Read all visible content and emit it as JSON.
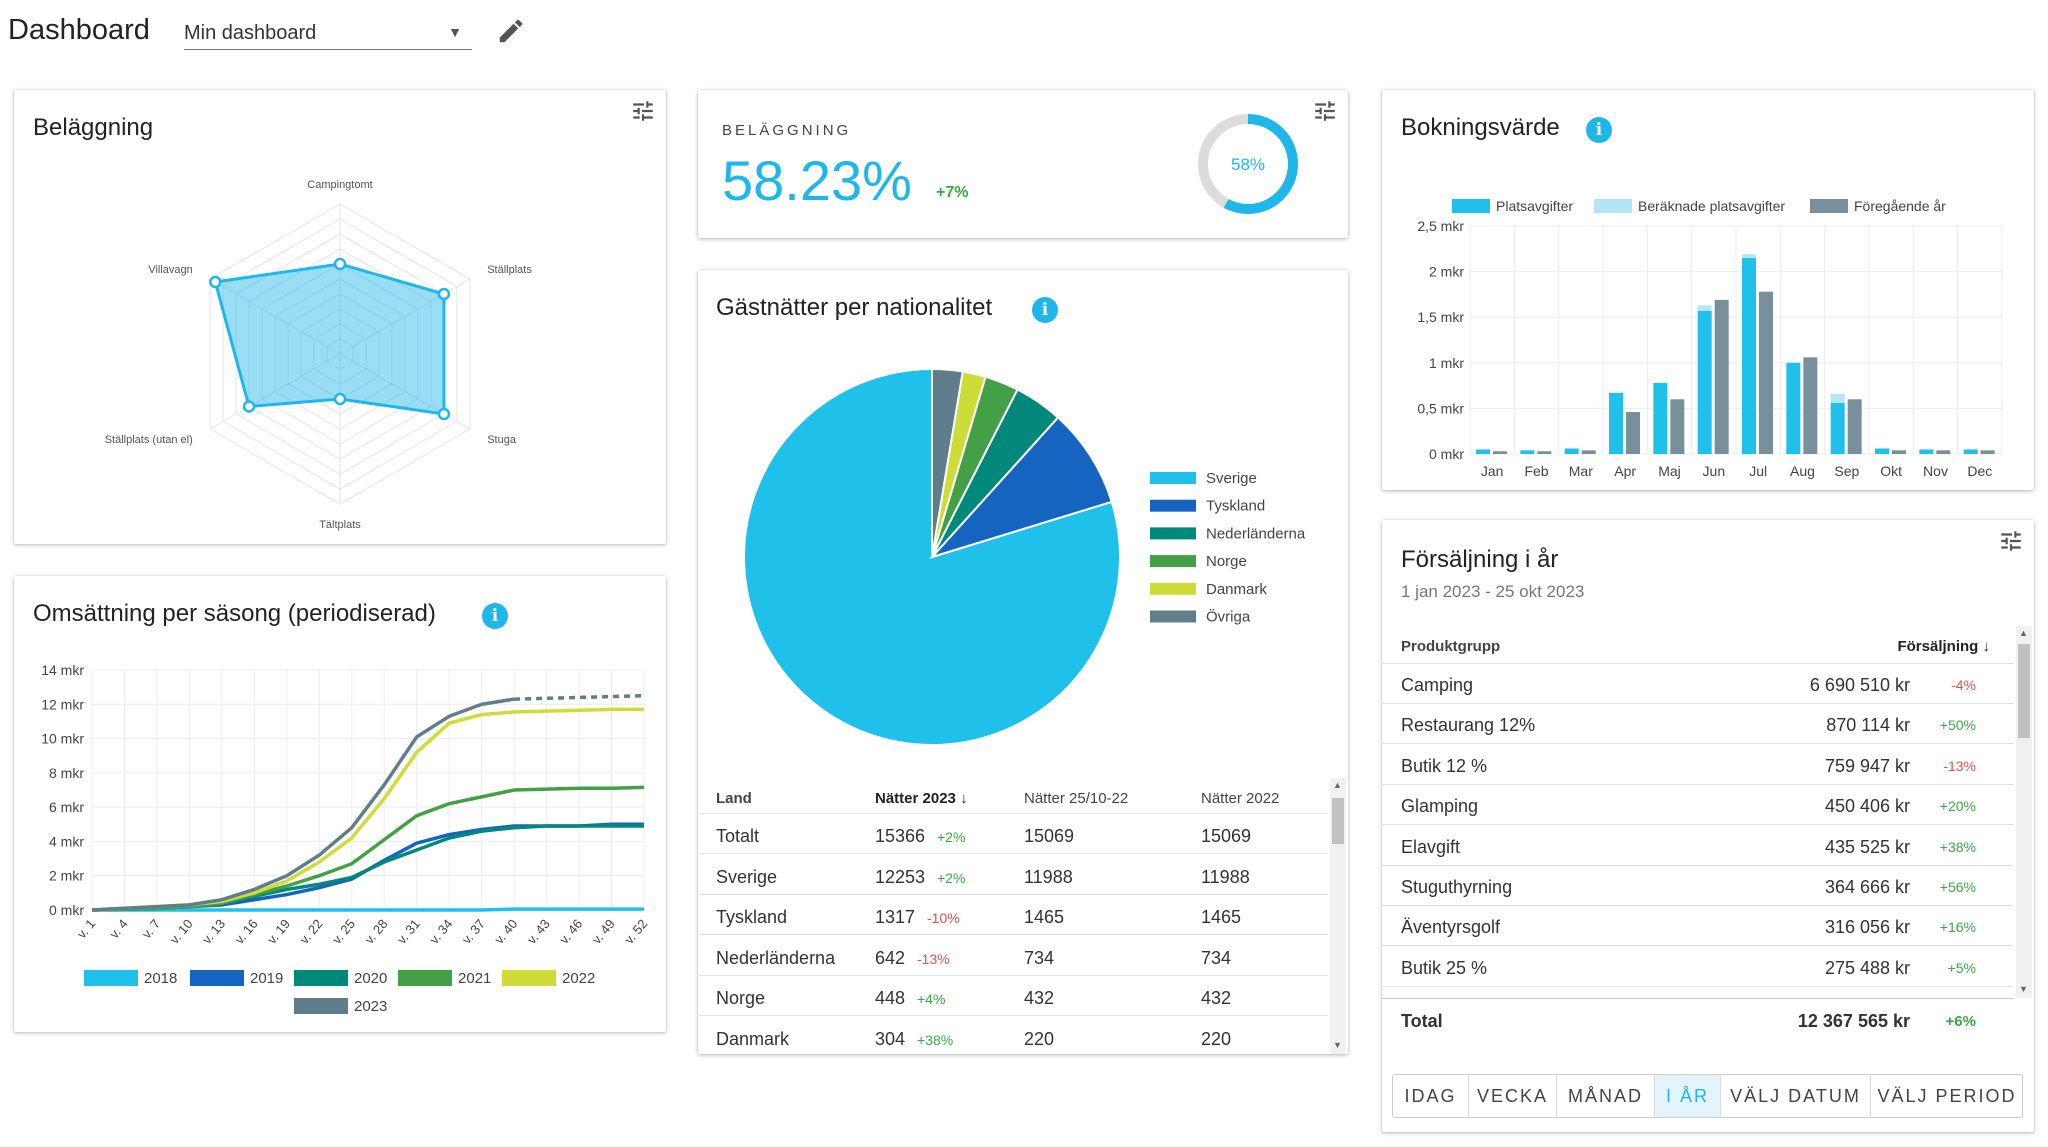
{
  "header": {
    "title": "Dashboard",
    "dashboard_select": "Min dashboard"
  },
  "colors": {
    "accent": "#1fb6ea",
    "positive": "#3aa844",
    "negative": "#e05050"
  },
  "radar": {
    "title": "Beläggning",
    "chart_data": {
      "type": "radar",
      "axes": [
        "Campingtomt",
        "Ställplats",
        "Stuga",
        "Tältplats",
        "Ställplats (utan el)",
        "Villavagn"
      ],
      "values": [
        0.6,
        0.8,
        0.8,
        0.3,
        0.7,
        0.96
      ],
      "max": 1
    }
  },
  "occupancy": {
    "label": "BELÄGGNING",
    "value": "58.23%",
    "change": "+7%",
    "donut_label": "58%",
    "donut_fraction": 0.58
  },
  "nationality": {
    "title": "Gästnätter per nationalitet",
    "chart_data": {
      "type": "pie",
      "labels": [
        "Sverige",
        "Tyskland",
        "Nederländerna",
        "Norge",
        "Danmark",
        "Övriga"
      ],
      "values": [
        12253,
        1317,
        642,
        448,
        304,
        402
      ],
      "colors": [
        "#1fc0ea",
        "#1565c0",
        "#00897b",
        "#43a047",
        "#cddc39",
        "#607d8b"
      ]
    },
    "table": {
      "headers": [
        "Land",
        "Nätter 2023",
        "Nätter 25/10-22",
        "Nätter 2022"
      ],
      "rows": [
        {
          "land": "Totalt",
          "n2023": "15366",
          "chg": "+2%",
          "n251022": "15069",
          "n2022": "15069"
        },
        {
          "land": "Sverige",
          "n2023": "12253",
          "chg": "+2%",
          "n251022": "11988",
          "n2022": "11988"
        },
        {
          "land": "Tyskland",
          "n2023": "1317",
          "chg": "-10%",
          "n251022": "1465",
          "n2022": "1465"
        },
        {
          "land": "Nederländerna",
          "n2023": "642",
          "chg": "-13%",
          "n251022": "734",
          "n2022": "734"
        },
        {
          "land": "Norge",
          "n2023": "448",
          "chg": "+4%",
          "n251022": "432",
          "n2022": "432"
        },
        {
          "land": "Danmark",
          "n2023": "304",
          "chg": "+38%",
          "n251022": "220",
          "n2022": "220"
        }
      ]
    }
  },
  "season": {
    "title": "Omsättning per säsong (periodiserad)",
    "chart_data": {
      "type": "line",
      "x": [
        "v. 1",
        "v. 4",
        "v. 7",
        "v. 10",
        "v. 13",
        "v. 16",
        "v. 19",
        "v. 22",
        "v. 25",
        "v. 28",
        "v. 31",
        "v. 34",
        "v. 37",
        "v. 40",
        "v. 43",
        "v. 46",
        "v. 49",
        "v. 52"
      ],
      "ylabels": [
        "0 mkr",
        "2 mkr",
        "4 mkr",
        "6 mkr",
        "8 mkr",
        "10 mkr",
        "12 mkr",
        "14 mkr"
      ],
      "ylim": [
        0,
        14
      ],
      "series": [
        {
          "name": "2018",
          "color": "#1fc0ea",
          "values": [
            0,
            0,
            0,
            0,
            0,
            0,
            0,
            0,
            0,
            0,
            0,
            0,
            0,
            0.05,
            0.05,
            0.05,
            0.05,
            0.05
          ]
        },
        {
          "name": "2019",
          "color": "#1565c0",
          "values": [
            0,
            0.05,
            0.1,
            0.2,
            0.3,
            0.6,
            0.9,
            1.3,
            1.8,
            2.9,
            3.9,
            4.4,
            4.7,
            4.9,
            4.9,
            4.9,
            5.0,
            5.0
          ]
        },
        {
          "name": "2020",
          "color": "#00897b",
          "values": [
            0,
            0.05,
            0.1,
            0.2,
            0.4,
            0.8,
            1.2,
            1.5,
            1.9,
            2.8,
            3.5,
            4.2,
            4.6,
            4.8,
            4.9,
            4.9,
            4.9,
            4.9
          ]
        },
        {
          "name": "2021",
          "color": "#43a047",
          "values": [
            0,
            0.05,
            0.1,
            0.2,
            0.4,
            0.9,
            1.4,
            2.0,
            2.7,
            4.1,
            5.5,
            6.2,
            6.6,
            7.0,
            7.05,
            7.1,
            7.1,
            7.15
          ]
        },
        {
          "name": "2022",
          "color": "#cddc39",
          "values": [
            0,
            0.1,
            0.2,
            0.3,
            0.5,
            1.0,
            1.7,
            2.8,
            4.2,
            6.5,
            9.2,
            10.9,
            11.4,
            11.55,
            11.6,
            11.65,
            11.7,
            11.7
          ]
        },
        {
          "name": "2023",
          "color": "#607d8b",
          "values": [
            0,
            0.1,
            0.2,
            0.3,
            0.6,
            1.2,
            2.0,
            3.2,
            4.8,
            7.3,
            10.1,
            11.3,
            12.0,
            12.3,
            12.35,
            12.4,
            12.45,
            12.5
          ]
        }
      ]
    }
  },
  "booking": {
    "title": "Bokningsvärde",
    "chart_data": {
      "type": "bar",
      "categories": [
        "Jan",
        "Feb",
        "Mar",
        "Apr",
        "Maj",
        "Jun",
        "Jul",
        "Aug",
        "Sep",
        "Okt",
        "Nov",
        "Dec"
      ],
      "ylabels": [
        "0 mkr",
        "0,5 mkr",
        "1 mkr",
        "1,5 mkr",
        "2 mkr",
        "2,5 mkr"
      ],
      "ylim": [
        0,
        2.5
      ],
      "series": [
        {
          "name": "Platsavgifter",
          "color": "#1fc0ea",
          "values": [
            0.05,
            0.04,
            0.06,
            0.67,
            0.78,
            1.57,
            2.15,
            1.0,
            0.56,
            0.06,
            0.05,
            0.05
          ]
        },
        {
          "name": "Beräknade platsavgifter",
          "color": "#b3e5f6",
          "values": [
            0,
            0,
            0,
            0,
            0,
            0.06,
            0.04,
            0,
            0.1,
            0,
            0,
            0
          ]
        },
        {
          "name": "Föregående år",
          "color": "#78909c",
          "values": [
            0.03,
            0.03,
            0.04,
            0.46,
            0.6,
            1.69,
            1.78,
            1.06,
            0.6,
            0.04,
            0.04,
            0.04
          ]
        }
      ]
    }
  },
  "sales": {
    "title": "Försäljning i år",
    "subtitle": "1 jan 2023 - 25 okt 2023",
    "col_group": "Produktgrupp",
    "col_sales": "Försäljning",
    "sort_icon": "arrow-down",
    "rows": [
      {
        "name": "Camping",
        "value": "6 690 510 kr",
        "chg": "-4%"
      },
      {
        "name": "Restaurang 12%",
        "value": "870 114 kr",
        "chg": "+50%"
      },
      {
        "name": "Butik 12 %",
        "value": "759 947 kr",
        "chg": "-13%"
      },
      {
        "name": "Glamping",
        "value": "450 406 kr",
        "chg": "+20%"
      },
      {
        "name": "Elavgift",
        "value": "435 525 kr",
        "chg": "+38%"
      },
      {
        "name": "Stuguthyrning",
        "value": "364 666 kr",
        "chg": "+56%"
      },
      {
        "name": "Äventyrsgolf",
        "value": "316 056 kr",
        "chg": "+16%"
      },
      {
        "name": "Butik 25 %",
        "value": "275 488 kr",
        "chg": "+5%"
      }
    ],
    "total": {
      "label": "Total",
      "value": "12 367 565 kr",
      "chg": "+6%"
    },
    "tabs": [
      "IDAG",
      "VECKA",
      "MÅNAD",
      "I ÅR",
      "VÄLJ DATUM",
      "VÄLJ PERIOD"
    ],
    "active_tab": "I ÅR"
  }
}
